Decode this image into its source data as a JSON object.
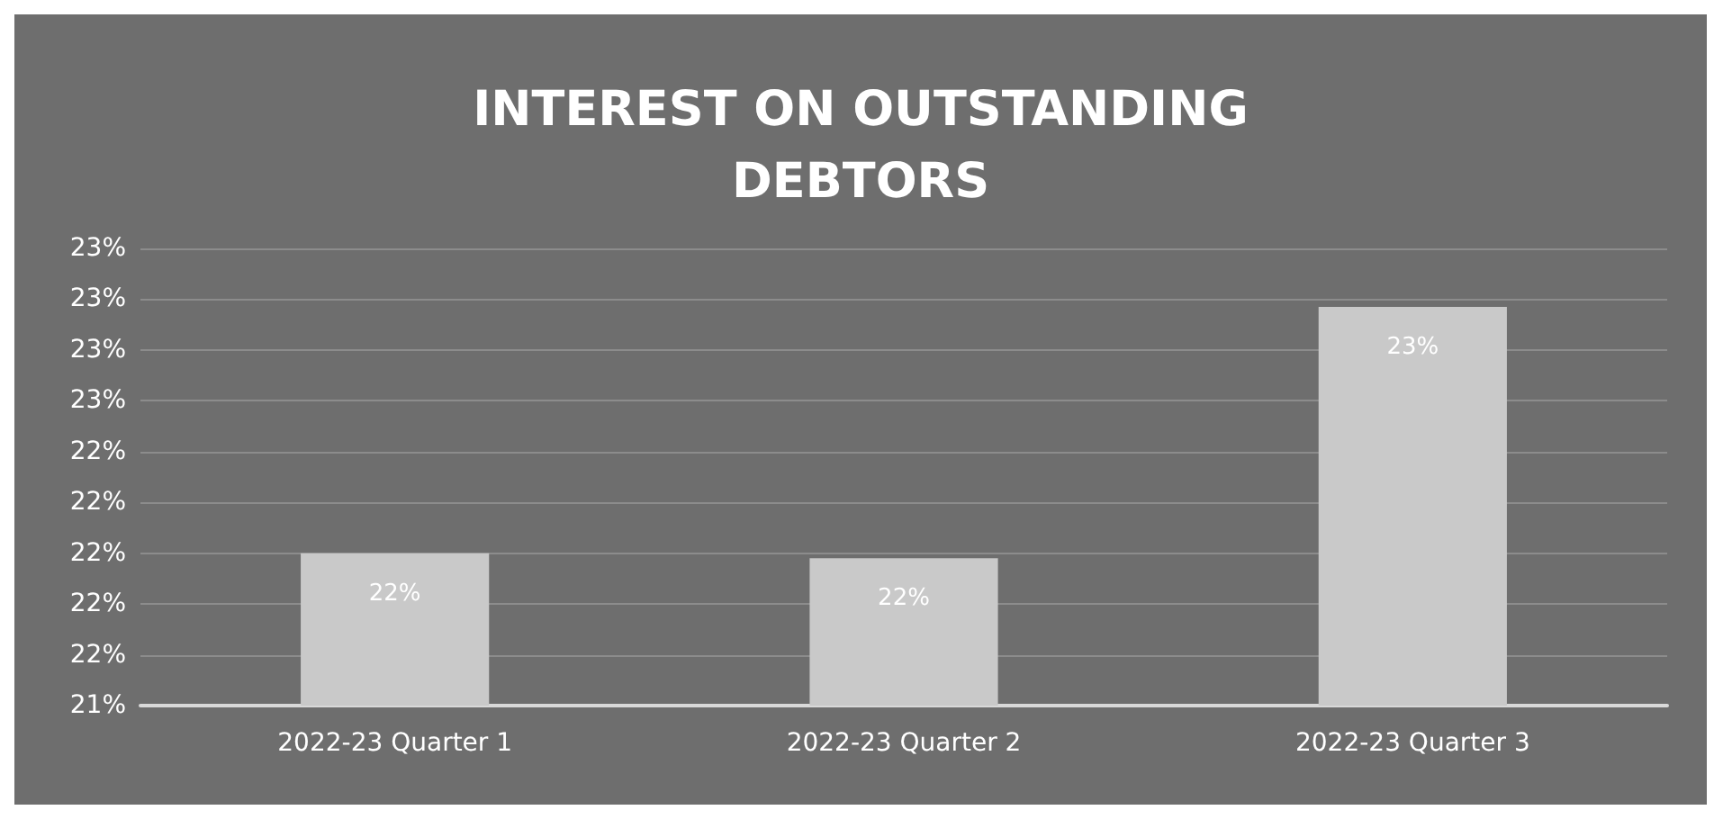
{
  "chart_data": {
    "type": "bar",
    "title": "INTEREST ON OUTSTANDING\nDEBTORS",
    "categories": [
      "2022-23 Quarter 1",
      "2022-23 Quarter 2",
      "2022-23 Quarter 3"
    ],
    "values": [
      22.0,
      21.98,
      22.97
    ],
    "color": "#c9c9c9",
    "value_labels": [
      "22%",
      "22%",
      "23%"
    ],
    "ylim": [
      21.4,
      23.2
    ],
    "yticks": [
      {
        "value": 21.4,
        "label": "21%"
      },
      {
        "value": 21.6,
        "label": "22%"
      },
      {
        "value": 21.8,
        "label": "22%"
      },
      {
        "value": 22.0,
        "label": "22%"
      },
      {
        "value": 22.2,
        "label": "22%"
      },
      {
        "value": 22.4,
        "label": "22%"
      },
      {
        "value": 22.6,
        "label": "23%"
      },
      {
        "value": 22.8,
        "label": "23%"
      },
      {
        "value": 23.0,
        "label": "23%"
      },
      {
        "value": 23.2,
        "label": "23%"
      }
    ],
    "grid": "y"
  }
}
